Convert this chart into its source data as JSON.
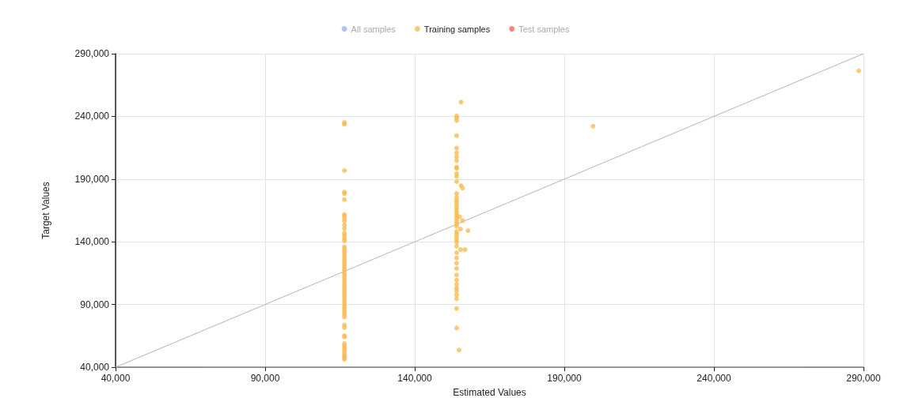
{
  "chart_data": {
    "type": "scatter",
    "xlabel": "Estimated Values",
    "ylabel": "Target Values",
    "xlim": [
      40000,
      290000
    ],
    "ylim": [
      40000,
      290000
    ],
    "xticks": [
      {
        "value": 40000,
        "label": "40,000"
      },
      {
        "value": 90000,
        "label": "90,000"
      },
      {
        "value": 140000,
        "label": "140,000"
      },
      {
        "value": 190000,
        "label": "190,000"
      },
      {
        "value": 240000,
        "label": "240,000"
      },
      {
        "value": 290000,
        "label": "290,000"
      }
    ],
    "yticks": [
      {
        "value": 40000,
        "label": "40,000"
      },
      {
        "value": 90000,
        "label": "90,000"
      },
      {
        "value": 140000,
        "label": "140,000"
      },
      {
        "value": 190000,
        "label": "190,000"
      },
      {
        "value": 240000,
        "label": "240,000"
      },
      {
        "value": 290000,
        "label": "290,000"
      }
    ],
    "grid": true,
    "legend": "top",
    "marker": "circle",
    "series": [
      {
        "name": "All samples",
        "color": "#8cb4e8"
      },
      {
        "name": "Training samples",
        "color": "#f9b84a",
        "x": [
          116500,
          116500,
          116500,
          116500,
          116500,
          116500,
          116500,
          116500,
          116500,
          116500,
          116500,
          116500,
          116500,
          116500,
          116500,
          116500,
          116500,
          116500,
          116500,
          116500,
          116500,
          116500,
          116500,
          116500,
          116500,
          116500,
          116500,
          116500,
          116500,
          116500,
          116500,
          116500,
          116500,
          116500,
          116500,
          116500,
          116500,
          116500,
          116500,
          116500,
          116500,
          116500,
          116500,
          116500,
          116500,
          116500,
          116500,
          116500,
          116500,
          116500,
          116500,
          116500,
          116500,
          116500,
          116500,
          116500,
          116500,
          155500,
          154000,
          154000,
          154000,
          154000,
          154000,
          154000,
          154000,
          154000,
          154000,
          154000,
          154000,
          154000,
          154000,
          155500,
          156000,
          154000,
          154000,
          154000,
          154000,
          154000,
          154000,
          154000,
          154000,
          154000,
          154000,
          155000,
          156000,
          155300,
          157800,
          154000,
          154000,
          154000,
          154000,
          154000,
          154000,
          154000,
          154000,
          154000,
          155300,
          156800,
          154000,
          154000,
          154000,
          154000,
          154000,
          154000,
          154000,
          154000,
          154000,
          154000,
          154000,
          154000,
          154000,
          154800,
          199600,
          288400
        ],
        "values": [
          235200,
          233700,
          196800,
          179600,
          178500,
          173700,
          161700,
          160700,
          158600,
          156500,
          153300,
          150600,
          147000,
          145000,
          142800,
          140800,
          136000,
          134000,
          132000,
          130000,
          128000,
          126000,
          124000,
          122000,
          120000,
          118000,
          116000,
          114000,
          112000,
          110000,
          108000,
          106000,
          104000,
          102000,
          100000,
          98000,
          96000,
          94000,
          92000,
          90000,
          88000,
          86000,
          84000,
          82000,
          80000,
          73600,
          71500,
          65200,
          64100,
          58900,
          57000,
          55000,
          53000,
          51000,
          49000,
          47500,
          46300,
          251400,
          240400,
          238800,
          236700,
          224700,
          214700,
          211100,
          207900,
          204800,
          199500,
          198500,
          194300,
          192200,
          188000,
          184800,
          182800,
          178500,
          175400,
          173300,
          171200,
          169100,
          167000,
          164900,
          162800,
          160700,
          158600,
          160000,
          156900,
          150200,
          148900,
          156500,
          154400,
          152300,
          148100,
          146000,
          143900,
          141800,
          139700,
          136500,
          133800,
          133800,
          131300,
          127100,
          122900,
          118700,
          113500,
          109300,
          106100,
          103000,
          100900,
          97700,
          94600,
          86800,
          71300,
          53700,
          232100,
          276300
        ]
      },
      {
        "name": "Test samples",
        "color": "#f0604d"
      },
      {
        "type": "line",
        "color": "#b4b4b4",
        "marker": "none",
        "x": [
          40000,
          290000
        ],
        "values": [
          40000,
          290000
        ]
      }
    ]
  }
}
